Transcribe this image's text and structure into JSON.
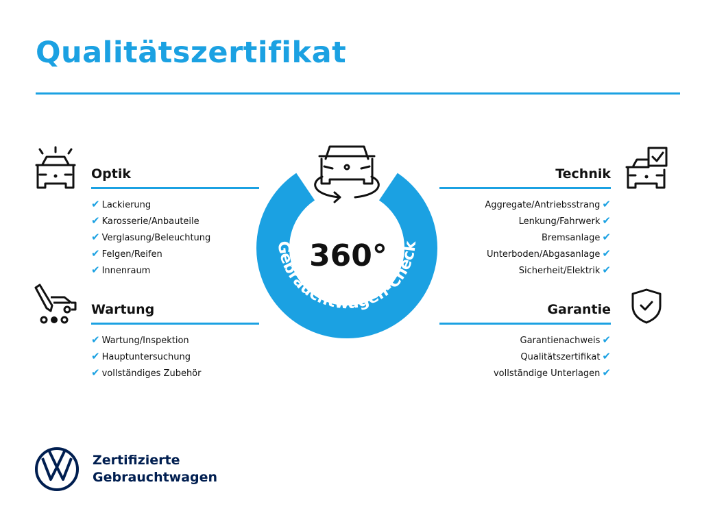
{
  "title": "Qualitätszertifikat",
  "colors": {
    "accent": "#1ba1e2",
    "brand": "#001e50",
    "text": "#111111"
  },
  "center": {
    "value": "360°",
    "ring_label": "Gebrauchtwagen-Check",
    "icon": "car-rotate-icon"
  },
  "check_icon": "✔",
  "sections": {
    "optik": {
      "title": "Optik",
      "icon": "car-lights-icon",
      "items": [
        "Lackierung",
        "Karosserie/Anbauteile",
        "Verglasung/Beleuchtung",
        "Felgen/Reifen",
        "Innenraum"
      ]
    },
    "wartung": {
      "title": "Wartung",
      "icon": "service-car-icon",
      "items": [
        "Wartung/Inspektion",
        "Hauptuntersuchung",
        "vollständiges Zubehör"
      ]
    },
    "technik": {
      "title": "Technik",
      "icon": "car-checklist-icon",
      "items": [
        "Aggregate/Antriebsstrang",
        "Lenkung/Fahrwerk",
        "Bremsanlage",
        "Unterboden/Abgasanlage",
        "Sicherheit/Elektrik"
      ]
    },
    "garantie": {
      "title": "Garantie",
      "icon": "shield-check-icon",
      "items": [
        "Garantienachweis",
        "Qualitätszertifikat",
        "vollständige Unterlagen"
      ]
    }
  },
  "footer": {
    "line1": "Zertifizierte",
    "line2": "Gebrauchtwagen",
    "logo": "vw-logo"
  }
}
